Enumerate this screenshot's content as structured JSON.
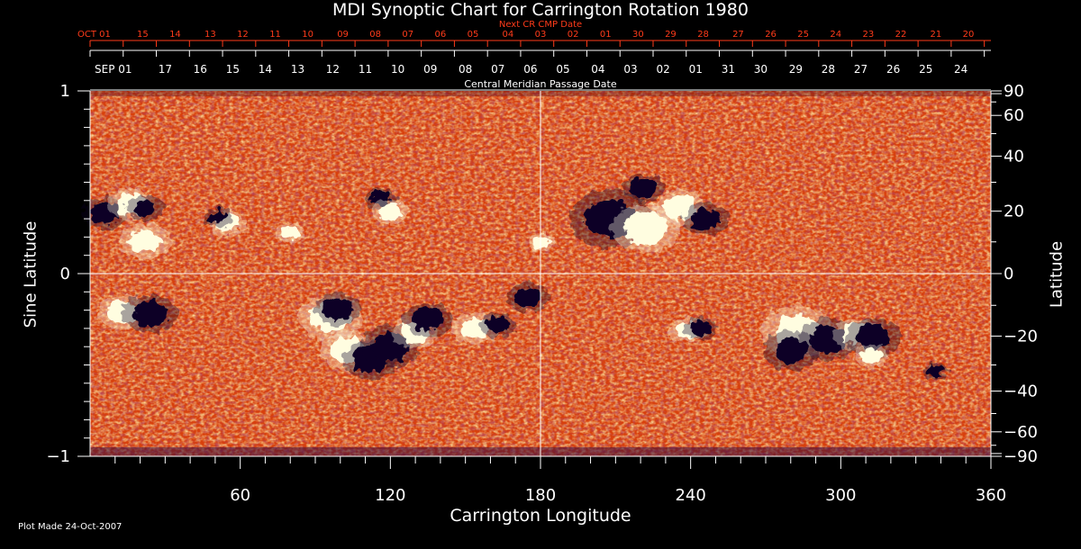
{
  "chart_data": {
    "type": "heatmap",
    "title": "MDI Synoptic Chart for Carrington Rotation 1980",
    "next_cr_label": "Next CR CMP Date",
    "cmp_label": "Central Meridian Passage Date",
    "xlabel": "Carrington Longitude",
    "ylabel_left": "Sine Latitude",
    "ylabel_right": "Latitude",
    "footer": "Plot Made 24-Oct-2007",
    "xlim": [
      0,
      360
    ],
    "ylim": [
      -1,
      1
    ],
    "x_ticks": [
      60,
      120,
      180,
      240,
      300,
      360
    ],
    "left_ticks": [
      {
        "value": 1,
        "label": "1"
      },
      {
        "value": 0,
        "label": "0"
      },
      {
        "value": -1,
        "label": "−1"
      }
    ],
    "right_ticks": [
      {
        "lat": 90,
        "label": "90"
      },
      {
        "lat": 60,
        "label": "60"
      },
      {
        "lat": 40,
        "label": "40"
      },
      {
        "lat": 20,
        "label": "20"
      },
      {
        "lat": 0,
        "label": "0"
      },
      {
        "lat": -20,
        "label": "−20"
      },
      {
        "lat": -40,
        "label": "−40"
      },
      {
        "lat": -60,
        "label": "−60"
      },
      {
        "lat": -90,
        "label": "−90"
      }
    ],
    "top_red_dates": [
      {
        "lon": 0,
        "label": "OCT 01"
      },
      {
        "lon": 21,
        "label": "15"
      },
      {
        "lon": 34,
        "label": "14"
      },
      {
        "lon": 48,
        "label": "13"
      },
      {
        "lon": 61,
        "label": "12"
      },
      {
        "lon": 74,
        "label": "11"
      },
      {
        "lon": 87,
        "label": "10"
      },
      {
        "lon": 101,
        "label": "09"
      },
      {
        "lon": 114,
        "label": "08"
      },
      {
        "lon": 127,
        "label": "07"
      },
      {
        "lon": 140,
        "label": "06"
      },
      {
        "lon": 153,
        "label": "05"
      },
      {
        "lon": 167,
        "label": "04"
      },
      {
        "lon": 180,
        "label": "03"
      },
      {
        "lon": 193,
        "label": "02"
      },
      {
        "lon": 206,
        "label": "01"
      },
      {
        "lon": 219,
        "label": "30"
      },
      {
        "lon": 232,
        "label": "29"
      },
      {
        "lon": 245,
        "label": "28"
      },
      {
        "lon": 259,
        "label": "27"
      },
      {
        "lon": 272,
        "label": "26"
      },
      {
        "lon": 285,
        "label": "25"
      },
      {
        "lon": 298,
        "label": "24"
      },
      {
        "lon": 311,
        "label": "23"
      },
      {
        "lon": 324,
        "label": "22"
      },
      {
        "lon": 338,
        "label": "21"
      },
      {
        "lon": 351,
        "label": "20"
      }
    ],
    "top_white_dates": [
      {
        "lon": 0,
        "label": "SEP 01"
      },
      {
        "lon": 30,
        "label": "17"
      },
      {
        "lon": 44,
        "label": "16"
      },
      {
        "lon": 57,
        "label": "15"
      },
      {
        "lon": 70,
        "label": "14"
      },
      {
        "lon": 83,
        "label": "13"
      },
      {
        "lon": 97,
        "label": "12"
      },
      {
        "lon": 110,
        "label": "11"
      },
      {
        "lon": 123,
        "label": "10"
      },
      {
        "lon": 136,
        "label": "09"
      },
      {
        "lon": 150,
        "label": "08"
      },
      {
        "lon": 163,
        "label": "07"
      },
      {
        "lon": 176,
        "label": "06"
      },
      {
        "lon": 189,
        "label": "05"
      },
      {
        "lon": 203,
        "label": "04"
      },
      {
        "lon": 216,
        "label": "03"
      },
      {
        "lon": 229,
        "label": "02"
      },
      {
        "lon": 242,
        "label": "01"
      },
      {
        "lon": 255,
        "label": "31"
      },
      {
        "lon": 268,
        "label": "30"
      },
      {
        "lon": 282,
        "label": "29"
      },
      {
        "lon": 295,
        "label": "28"
      },
      {
        "lon": 308,
        "label": "27"
      },
      {
        "lon": 321,
        "label": "26"
      },
      {
        "lon": 334,
        "label": "25"
      },
      {
        "lon": 348,
        "label": "24"
      }
    ],
    "active_regions": [
      {
        "lon": 6,
        "sinlat": 0.33,
        "polarity": "negative",
        "size": 1.0
      },
      {
        "lon": 16,
        "sinlat": 0.38,
        "polarity": "positive",
        "size": 1.0
      },
      {
        "lon": 22,
        "sinlat": 0.36,
        "polarity": "negative",
        "size": 0.8
      },
      {
        "lon": 22,
        "sinlat": 0.18,
        "polarity": "positive",
        "size": 1.1
      },
      {
        "lon": 55,
        "sinlat": 0.28,
        "polarity": "positive",
        "size": 0.8
      },
      {
        "lon": 51,
        "sinlat": 0.31,
        "polarity": "negative",
        "size": 0.6
      },
      {
        "lon": 80,
        "sinlat": 0.22,
        "polarity": "positive",
        "size": 0.6
      },
      {
        "lon": 116,
        "sinlat": 0.41,
        "polarity": "negative",
        "size": 0.7
      },
      {
        "lon": 120,
        "sinlat": 0.34,
        "polarity": "positive",
        "size": 0.8
      },
      {
        "lon": 180,
        "sinlat": 0.17,
        "polarity": "positive",
        "size": 0.6
      },
      {
        "lon": 208,
        "sinlat": 0.3,
        "polarity": "negative",
        "size": 1.8
      },
      {
        "lon": 222,
        "sinlat": 0.25,
        "polarity": "positive",
        "size": 1.5
      },
      {
        "lon": 236,
        "sinlat": 0.36,
        "polarity": "positive",
        "size": 1.1
      },
      {
        "lon": 221,
        "sinlat": 0.47,
        "polarity": "negative",
        "size": 0.9
      },
      {
        "lon": 246,
        "sinlat": 0.3,
        "polarity": "negative",
        "size": 1.0
      },
      {
        "lon": 13,
        "sinlat": -0.21,
        "polarity": "positive",
        "size": 1.1
      },
      {
        "lon": 24,
        "sinlat": -0.22,
        "polarity": "negative",
        "size": 1.2
      },
      {
        "lon": 96,
        "sinlat": -0.24,
        "polarity": "positive",
        "size": 1.4
      },
      {
        "lon": 99,
        "sinlat": -0.19,
        "polarity": "negative",
        "size": 1.0
      },
      {
        "lon": 103,
        "sinlat": -0.42,
        "polarity": "positive",
        "size": 1.2
      },
      {
        "lon": 112,
        "sinlat": -0.47,
        "polarity": "negative",
        "size": 1.2
      },
      {
        "lon": 120,
        "sinlat": -0.4,
        "polarity": "negative",
        "size": 1.3
      },
      {
        "lon": 130,
        "sinlat": -0.32,
        "polarity": "positive",
        "size": 1.0
      },
      {
        "lon": 135,
        "sinlat": -0.25,
        "polarity": "negative",
        "size": 1.1
      },
      {
        "lon": 154,
        "sinlat": -0.3,
        "polarity": "positive",
        "size": 1.0
      },
      {
        "lon": 163,
        "sinlat": -0.28,
        "polarity": "negative",
        "size": 0.8
      },
      {
        "lon": 175,
        "sinlat": -0.13,
        "polarity": "negative",
        "size": 0.9
      },
      {
        "lon": 239,
        "sinlat": -0.31,
        "polarity": "positive",
        "size": 0.8
      },
      {
        "lon": 244,
        "sinlat": -0.3,
        "polarity": "negative",
        "size": 0.7
      },
      {
        "lon": 283,
        "sinlat": -0.32,
        "polarity": "positive",
        "size": 1.6
      },
      {
        "lon": 280,
        "sinlat": -0.42,
        "polarity": "negative",
        "size": 1.2
      },
      {
        "lon": 295,
        "sinlat": -0.36,
        "polarity": "negative",
        "size": 1.3
      },
      {
        "lon": 306,
        "sinlat": -0.33,
        "polarity": "positive",
        "size": 1.0
      },
      {
        "lon": 313,
        "sinlat": -0.35,
        "polarity": "negative",
        "size": 1.2
      },
      {
        "lon": 312,
        "sinlat": -0.45,
        "polarity": "positive",
        "size": 0.7
      },
      {
        "lon": 338,
        "sinlat": -0.53,
        "polarity": "negative",
        "size": 0.5
      }
    ],
    "grid_lines": {
      "x": 180,
      "y": 0
    },
    "colors": {
      "background_field": "#d8400c",
      "positive": "#fffde0",
      "negative": "#100028",
      "axis": "#ffffff",
      "next_cr_dates": "#ff3b1a"
    }
  }
}
